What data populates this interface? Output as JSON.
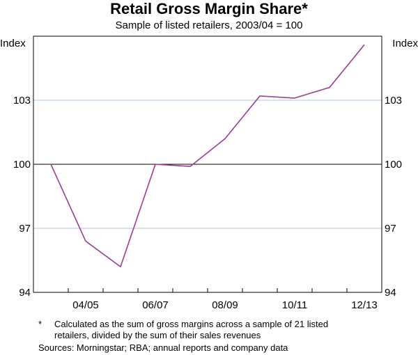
{
  "chart_data": {
    "type": "line",
    "title": "Retail Gross Margin Share*",
    "subtitle": "Sample of listed retailers, 2003/04 = 100",
    "ylabel_left": "Index",
    "ylabel_right": "Index",
    "ylim": [
      94,
      106
    ],
    "yticks": [
      94,
      97,
      100,
      103
    ],
    "x_tick_labels": [
      "04/05",
      "06/07",
      "08/09",
      "10/11",
      "12/13"
    ],
    "x": [
      "2003/04",
      "2004/05",
      "2005/06",
      "2006/07",
      "2007/08",
      "2008/09",
      "2009/10",
      "2010/11",
      "2011/12",
      "2012/13"
    ],
    "values": [
      100.0,
      96.4,
      95.2,
      100.0,
      99.9,
      101.2,
      103.2,
      103.1,
      103.6,
      105.6
    ],
    "reference_line": 100,
    "grid": true,
    "line_color": "#9b3c8e",
    "grid_color": "#aec6dc"
  },
  "notes": {
    "footnote_marker": "*",
    "footnote_line1": "Calculated as the sum of gross margins across a sample of 21 listed",
    "footnote_line2": "retailers, divided by the sum of their sales revenues",
    "sources": "Sources: Morningstar; RBA; annual reports and company data"
  }
}
